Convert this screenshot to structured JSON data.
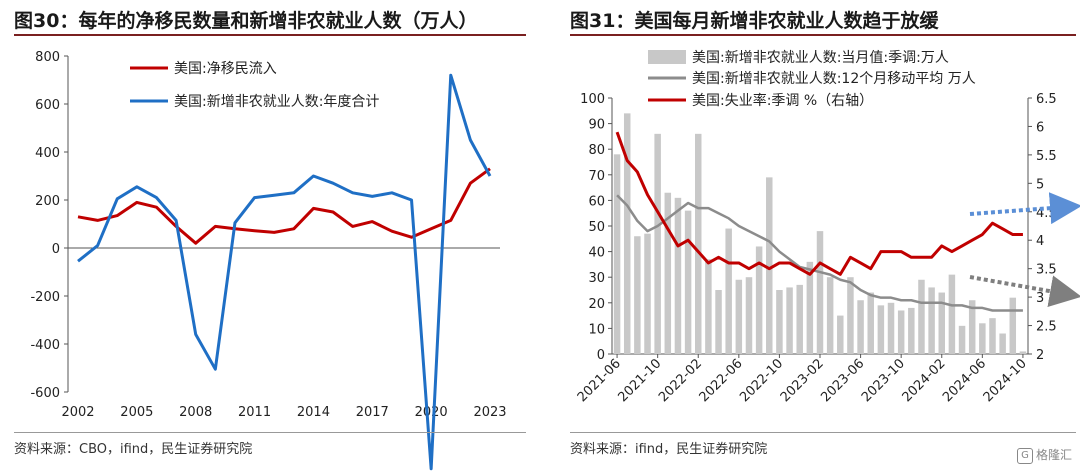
{
  "left": {
    "title": "图30：每年的净移民数量和新增非农就业人数（万人）",
    "source": "资料来源：CBO，ifind，民生证券研究院",
    "colors": {
      "series1": "#c00000",
      "series2": "#1f6fc5"
    },
    "chart_data": {
      "type": "line",
      "x": [
        2002,
        2003,
        2004,
        2005,
        2006,
        2007,
        2008,
        2009,
        2010,
        2011,
        2012,
        2013,
        2014,
        2015,
        2016,
        2017,
        2018,
        2019,
        2020,
        2021,
        2022,
        2023
      ],
      "xticks": [
        "2002",
        "2005",
        "2008",
        "2011",
        "2014",
        "2017",
        "2020",
        "2023"
      ],
      "ylim": [
        -600,
        800
      ],
      "yticks": [
        -600,
        -400,
        -200,
        0,
        200,
        400,
        600,
        800
      ],
      "legend_placement": "top-left",
      "series": [
        {
          "name": "美国:净移民流入",
          "values": [
            130,
            115,
            135,
            190,
            170,
            90,
            20,
            90,
            80,
            72,
            65,
            80,
            165,
            150,
            90,
            110,
            70,
            45,
            80,
            115,
            270,
            330
          ]
        },
        {
          "name": "美国:新增非农就业人数:年度合计",
          "values": [
            -55,
            10,
            205,
            255,
            210,
            115,
            -360,
            -505,
            105,
            210,
            220,
            230,
            300,
            270,
            230,
            215,
            230,
            200,
            -920,
            720,
            450,
            300
          ]
        }
      ]
    }
  },
  "right": {
    "title": "图31：美国每月新增非农就业人数趋于放缓",
    "source": "资料来源：ifind，民生证券研究院",
    "watermark": "格隆汇",
    "watermark_icon": "G",
    "colors": {
      "bars": "#c8c8c8",
      "ma": "#8c8c8c",
      "unemp": "#c00000",
      "arrow_blue": "#5b8fd6",
      "arrow_gray": "#7f7f7f"
    },
    "chart_data": {
      "type": "bar",
      "categories": [
        "2021-06",
        "2021-07",
        "2021-08",
        "2021-09",
        "2021-10",
        "2021-11",
        "2021-12",
        "2022-01",
        "2022-02",
        "2022-03",
        "2022-04",
        "2022-05",
        "2022-06",
        "2022-07",
        "2022-08",
        "2022-09",
        "2022-10",
        "2022-11",
        "2022-12",
        "2023-01",
        "2023-02",
        "2023-03",
        "2023-04",
        "2023-05",
        "2023-06",
        "2023-07",
        "2023-08",
        "2023-09",
        "2023-10",
        "2023-11",
        "2023-12",
        "2024-01",
        "2024-02",
        "2024-03",
        "2024-04",
        "2024-05",
        "2024-06",
        "2024-07",
        "2024-08",
        "2024-09",
        "2024-10"
      ],
      "xticks": [
        "2021-06",
        "2021-10",
        "2022-02",
        "2022-06",
        "2022-10",
        "2023-02",
        "2023-06",
        "2023-10",
        "2024-02",
        "2024-06",
        "2024-10"
      ],
      "ylim": [
        0,
        100
      ],
      "yticks": [
        0,
        10,
        20,
        30,
        40,
        50,
        60,
        70,
        80,
        90,
        100
      ],
      "y2lim": [
        2,
        6.5
      ],
      "y2ticks": [
        "2",
        "2.5",
        "3",
        "3.5",
        "4",
        "4.5",
        "5",
        "5.5",
        "6",
        "6.5"
      ],
      "legend_placement": "top",
      "series": [
        {
          "name": "美国:新增非农就业人数:当月值:季调:万人",
          "axis": "left",
          "kind": "bar",
          "values": [
            78,
            94,
            46,
            47,
            86,
            63,
            61,
            56,
            86,
            37,
            25,
            49,
            29,
            30,
            42,
            69,
            25,
            26,
            27,
            36,
            48,
            30,
            15,
            30,
            21,
            24,
            19,
            20,
            17,
            18,
            29,
            26,
            24,
            31,
            11,
            21,
            12,
            14,
            8,
            22,
            1
          ]
        },
        {
          "name": "美国:新增非农就业人数:12个月移动平均 万人",
          "axis": "left",
          "kind": "line",
          "values": [
            62,
            58,
            52,
            48,
            50,
            53,
            56,
            59,
            57,
            57,
            55,
            53,
            50,
            48,
            46,
            44,
            40,
            37,
            34,
            33,
            32,
            31,
            29,
            28,
            25,
            23,
            22,
            22,
            21,
            21,
            20,
            20,
            20,
            19,
            19,
            18,
            18,
            17,
            17,
            17,
            17
          ]
        },
        {
          "name": "美国:失业率:季调 %（右轴）",
          "axis": "right",
          "kind": "line",
          "values": [
            5.9,
            5.4,
            5.2,
            4.8,
            4.5,
            4.2,
            3.9,
            4.0,
            3.8,
            3.6,
            3.7,
            3.6,
            3.6,
            3.5,
            3.6,
            3.5,
            3.6,
            3.6,
            3.5,
            3.4,
            3.6,
            3.5,
            3.4,
            3.7,
            3.6,
            3.5,
            3.8,
            3.8,
            3.8,
            3.7,
            3.7,
            3.7,
            3.9,
            3.8,
            3.9,
            4.0,
            4.1,
            4.3,
            4.2,
            4.1,
            4.1
          ]
        }
      ]
    }
  }
}
